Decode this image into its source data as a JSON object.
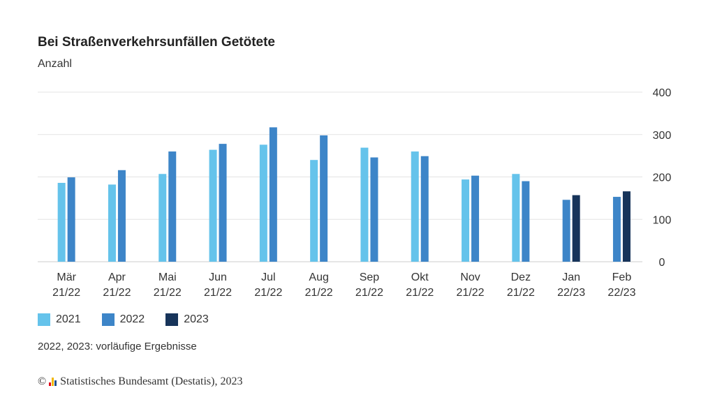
{
  "header": {
    "title": "Bei Straßenverkehrsunfällen Getötete",
    "subtitle": "Anzahl"
  },
  "note": "2022, 2023: vorläufige Ergebnisse",
  "footer": {
    "copyright_symbol": "©",
    "source": "Statistisches Bundesamt (Destatis), 2023"
  },
  "colors": {
    "2021": "#65c3eb",
    "2022": "#3d85c8",
    "2023": "#17345a",
    "grid": "#e3e3e3",
    "logo": [
      "#e2001a",
      "#f2b705",
      "#1f4e8c"
    ]
  },
  "chart_data": {
    "type": "bar",
    "title": "Bei Straßenverkehrsunfällen Getötete",
    "subtitle": "Anzahl",
    "categories": [
      [
        "Mär",
        "21/22"
      ],
      [
        "Apr",
        "21/22"
      ],
      [
        "Mai",
        "21/22"
      ],
      [
        "Jun",
        "21/22"
      ],
      [
        "Jul",
        "21/22"
      ],
      [
        "Aug",
        "21/22"
      ],
      [
        "Sep",
        "21/22"
      ],
      [
        "Okt",
        "21/22"
      ],
      [
        "Nov",
        "21/22"
      ],
      [
        "Dez",
        "21/22"
      ],
      [
        "Jan",
        "22/23"
      ],
      [
        "Feb",
        "22/23"
      ]
    ],
    "series": [
      {
        "name": "2021",
        "values": [
          186,
          182,
          207,
          264,
          276,
          240,
          269,
          260,
          194,
          207,
          null,
          null
        ]
      },
      {
        "name": "2022",
        "values": [
          199,
          216,
          260,
          278,
          317,
          298,
          246,
          249,
          203,
          190,
          146,
          153
        ]
      },
      {
        "name": "2023",
        "values": [
          null,
          null,
          null,
          null,
          null,
          null,
          null,
          null,
          null,
          null,
          157,
          166
        ]
      }
    ],
    "ylim": [
      0,
      400
    ],
    "yticks": [
      0,
      100,
      200,
      300,
      400
    ],
    "y_axis_position": "right",
    "grid": true,
    "legend_position": "bottom-left",
    "xlabel": "",
    "ylabel": ""
  }
}
